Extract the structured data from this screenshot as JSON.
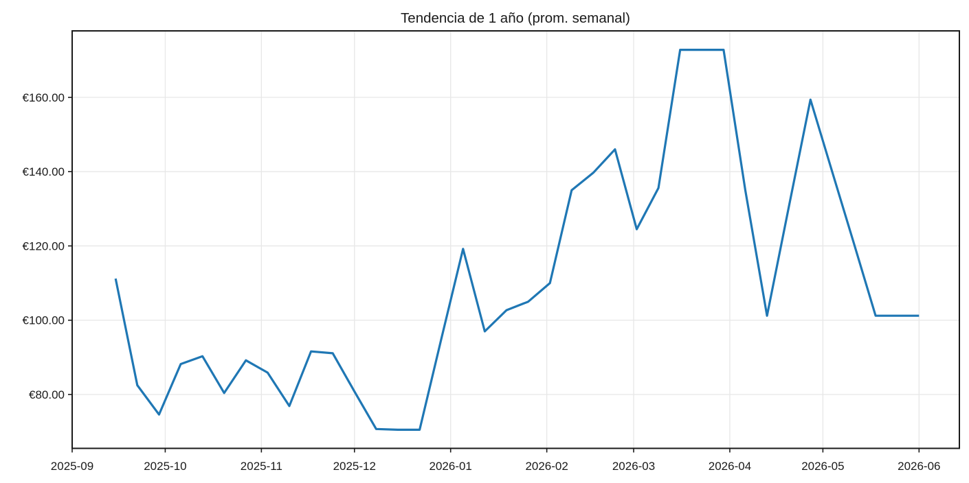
{
  "chart_data": {
    "type": "line",
    "title": "Tendencia de 1 año (prom. semanal)",
    "grid": true,
    "legend_position": "none",
    "x_range": [
      "2025-09-01",
      "2026-06-14"
    ],
    "y_range": [
      65.5,
      177.9
    ],
    "x_ticks": [
      {
        "label": "2025-09",
        "date": "2025-09-01"
      },
      {
        "label": "2025-10",
        "date": "2025-10-01"
      },
      {
        "label": "2025-11",
        "date": "2025-11-01"
      },
      {
        "label": "2025-12",
        "date": "2025-12-01"
      },
      {
        "label": "2026-01",
        "date": "2026-01-01"
      },
      {
        "label": "2026-02",
        "date": "2026-02-01"
      },
      {
        "label": "2026-03",
        "date": "2026-03-01"
      },
      {
        "label": "2026-04",
        "date": "2026-04-01"
      },
      {
        "label": "2026-05",
        "date": "2026-05-01"
      },
      {
        "label": "2026-06",
        "date": "2026-06-01"
      }
    ],
    "y_ticks": [
      {
        "value": 80,
        "label": "€80.00"
      },
      {
        "value": 100,
        "label": "€100.00"
      },
      {
        "value": 120,
        "label": "€120.00"
      },
      {
        "value": 140,
        "label": "€140.00"
      },
      {
        "value": 160,
        "label": "€160.00"
      }
    ],
    "colors": {
      "line": "#1f77b4",
      "grid": "#e7e7e7",
      "axis": "#1a1a1a",
      "text": "#1a1a1a",
      "background": "#ffffff"
    },
    "series": [
      {
        "color": "#1f77b4",
        "points": [
          {
            "date": "2025-09-15",
            "value": 111.2
          },
          {
            "date": "2025-09-22",
            "value": 82.5
          },
          {
            "date": "2025-09-29",
            "value": 74.6
          },
          {
            "date": "2025-10-06",
            "value": 88.2
          },
          {
            "date": "2025-10-13",
            "value": 90.3
          },
          {
            "date": "2025-10-20",
            "value": 80.4
          },
          {
            "date": "2025-10-27",
            "value": 89.2
          },
          {
            "date": "2025-11-03",
            "value": 85.9
          },
          {
            "date": "2025-11-10",
            "value": 76.9
          },
          {
            "date": "2025-11-17",
            "value": 91.6
          },
          {
            "date": "2025-11-24",
            "value": 91.1
          },
          {
            "date": "2025-12-01",
            "value": 80.8
          },
          {
            "date": "2025-12-08",
            "value": 70.7
          },
          {
            "date": "2025-12-15",
            "value": 70.5
          },
          {
            "date": "2025-12-22",
            "value": 70.5
          },
          {
            "date": "2025-12-29",
            "value": 95.0
          },
          {
            "date": "2026-01-05",
            "value": 119.2
          },
          {
            "date": "2026-01-12",
            "value": 97.0
          },
          {
            "date": "2026-01-19",
            "value": 102.7
          },
          {
            "date": "2026-01-26",
            "value": 105.0
          },
          {
            "date": "2026-02-02",
            "value": 110.0
          },
          {
            "date": "2026-02-09",
            "value": 135.0
          },
          {
            "date": "2026-02-16",
            "value": 139.7
          },
          {
            "date": "2026-02-23",
            "value": 146.0
          },
          {
            "date": "2026-03-02",
            "value": 124.5
          },
          {
            "date": "2026-03-09",
            "value": 135.6
          },
          {
            "date": "2026-03-16",
            "value": 172.8
          },
          {
            "date": "2026-03-23",
            "value": 172.8
          },
          {
            "date": "2026-03-30",
            "value": 172.8
          },
          {
            "date": "2026-04-06",
            "value": 135.0
          },
          {
            "date": "2026-04-13",
            "value": 101.2
          },
          {
            "date": "2026-04-20",
            "value": 130.4
          },
          {
            "date": "2026-04-27",
            "value": 159.4
          },
          {
            "date": "2026-05-04",
            "value": 140.0
          },
          {
            "date": "2026-05-11",
            "value": 120.7
          },
          {
            "date": "2026-05-18",
            "value": 101.2
          },
          {
            "date": "2026-05-25",
            "value": 101.2
          },
          {
            "date": "2026-06-01",
            "value": 101.2
          }
        ]
      }
    ]
  }
}
